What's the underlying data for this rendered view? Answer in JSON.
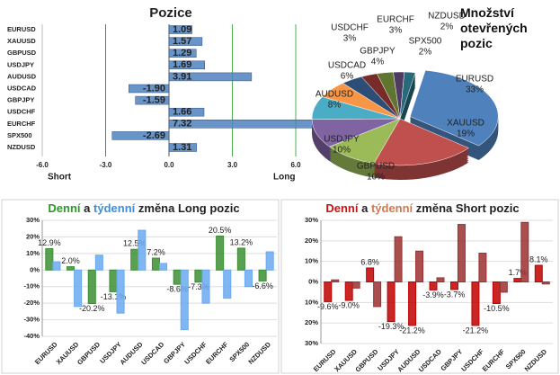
{
  "chart_data": [
    {
      "type": "bar",
      "orientation": "horizontal",
      "title": "Pozice",
      "categories": [
        "EURUSD",
        "XAUUSD",
        "GBPUSD",
        "USDJPY",
        "AUDUSD",
        "USDCAD",
        "GBPJPY",
        "USDCHF",
        "EURCHF",
        "SPX500",
        "NZDUSD"
      ],
      "values": [
        1.09,
        1.57,
        1.29,
        1.69,
        3.91,
        -1.9,
        -1.59,
        1.66,
        7.32,
        -2.69,
        1.31
      ],
      "value_labels": [
        "1.09",
        "1.57",
        "1.29",
        "1.69",
        "3.91",
        "-1.90",
        "-1.59",
        "1.66",
        "7.32",
        "-2.69",
        "1.31"
      ],
      "color": "#4f81bd",
      "xlim": [
        -6,
        6
      ],
      "xticks": [
        {
          "value": -6,
          "label": "-6.0"
        },
        {
          "value": -3,
          "label": "-3.0"
        },
        {
          "value": 0,
          "label": "0.0"
        },
        {
          "value": 3,
          "label": "3.0"
        },
        {
          "value": 6,
          "label": "6.0"
        }
      ],
      "xlabel_left": "Short",
      "xlabel_right": "Long"
    },
    {
      "type": "pie",
      "title": "Množství otevřených pozic",
      "categories": [
        "EURUSD",
        "XAUUSD",
        "GBPUSD",
        "USDJPY",
        "AUDUSD",
        "USDCAD",
        "GBPJPY",
        "USDCHF",
        "EURCHF",
        "SPX500",
        "NZDUSD"
      ],
      "values": [
        33,
        19,
        10,
        10,
        8,
        6,
        4,
        3,
        3,
        2,
        2
      ],
      "value_labels": [
        "33%",
        "19%",
        "10%",
        "10%",
        "8%",
        "6%",
        "4%",
        "3%",
        "3%",
        "2%",
        "2%"
      ],
      "colors": [
        "#4f81bd",
        "#c0504d",
        "#9bbb59",
        "#8064a2",
        "#4bacc6",
        "#f79646",
        "#2c4d75",
        "#772c2a",
        "#5f7530",
        "#4d3b62",
        "#276a7c"
      ]
    },
    {
      "type": "bar",
      "title": [
        "Denní",
        "a",
        "týdenní",
        "změna Long pozic"
      ],
      "title_colors": [
        "#2a9a2a",
        "#222222",
        "#3b8fe0",
        "#222222"
      ],
      "categories": [
        "EURUSD",
        "XAUUSD",
        "GBPUSD",
        "USDJPY",
        "AUDUSD",
        "USDCAD",
        "GBPJPY",
        "USDCHF",
        "EURCHF",
        "SPX500",
        "NZDUSD"
      ],
      "series": [
        {
          "color": "#3c8f34",
          "values": [
            12.9,
            2.0,
            -20.2,
            -13.1,
            12.5,
            7.2,
            -8.6,
            -7.3,
            20.5,
            13.2,
            -6.6
          ],
          "value_labels": [
            "12.9%",
            "2.0%",
            "-20.2%",
            "-13.1%",
            "12.5%",
            "7.2%",
            "-8.6%",
            "-7.3%",
            "20.5%",
            "13.2%",
            "-6.6%"
          ]
        },
        {
          "color": "#6aaaf0",
          "values": [
            5,
            -22,
            9,
            -26,
            24,
            4,
            -36,
            -20,
            -17,
            -10,
            11
          ]
        }
      ],
      "ylim": [
        -40,
        30
      ],
      "yticks": [
        {
          "value": -40,
          "label": "-40%"
        },
        {
          "value": -30,
          "label": "-30%"
        },
        {
          "value": -20,
          "label": "-20%"
        },
        {
          "value": -10,
          "label": "-10%"
        },
        {
          "value": 0,
          "label": "0%"
        },
        {
          "value": 10,
          "label": "10%"
        },
        {
          "value": 20,
          "label": "20%"
        },
        {
          "value": 30,
          "label": "30%"
        }
      ],
      "grid": true
    },
    {
      "type": "bar",
      "title": [
        "Denní",
        "a",
        "týdenní",
        "změna Short pozic"
      ],
      "title_colors": [
        "#cc1111",
        "#222222",
        "#d07a50",
        "#222222"
      ],
      "categories": [
        "EURUSD",
        "XAUUSD",
        "GBPUSD",
        "USDJPY",
        "AUDUSD",
        "USDCAD",
        "GBPJPY",
        "USDCHF",
        "EURCHF",
        "SPX500",
        "NZDUSD"
      ],
      "series": [
        {
          "color": "#c00000",
          "values": [
            -9.6,
            -9.0,
            6.8,
            -19.3,
            -21.2,
            -3.9,
            -3.7,
            -21.2,
            -10.5,
            1.7,
            8.1
          ],
          "value_labels": [
            "-9.6%",
            "-9.0%",
            "6.8%",
            "-19.3%",
            "-21.2%",
            "-3.9%",
            "-3.7%",
            "-21.2%",
            "-10.5%",
            "1.7%",
            "8.1%"
          ]
        },
        {
          "color": "#9b3030",
          "values": [
            1,
            -3,
            -12,
            22,
            15,
            2,
            28,
            14,
            -5,
            29,
            -1
          ]
        }
      ],
      "ylim": [
        -30,
        30
      ],
      "yticks": [
        {
          "value": -30,
          "label": "30%"
        },
        {
          "value": -20,
          "label": "20%"
        },
        {
          "value": -10,
          "label": "10%"
        },
        {
          "value": 0,
          "label": "0%"
        },
        {
          "value": 10,
          "label": "10%"
        },
        {
          "value": 20,
          "label": "20%"
        },
        {
          "value": 30,
          "label": "30%"
        }
      ],
      "grid": true
    }
  ]
}
